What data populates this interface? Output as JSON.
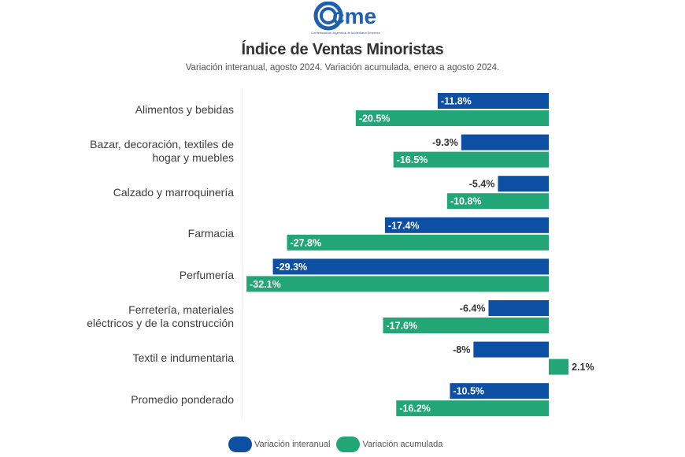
{
  "header": {
    "logo_text": "cme",
    "logo_tagline": "Confederación Argentina de la Mediana Empresa"
  },
  "colors": {
    "interanual": "#0d4fa3",
    "acumulada": "#22a676",
    "label_dark": "#333333",
    "label_light": "#ffffff",
    "logo": "#1f5fb0"
  },
  "chart_data": {
    "type": "bar",
    "orientation": "horizontal",
    "title": "Índice de Ventas Minoristas",
    "subtitle": "Variación interanual, agosto 2024. Variación acumulada, enero a agosto 2024.",
    "xlabel": "",
    "ylabel": "",
    "unit": "%",
    "xlim": [
      -32.1,
      2.1
    ],
    "grid": false,
    "legend_position": "bottom",
    "categories": [
      "Alimentos y bebidas",
      "Bazar, decoración, textiles de hogar y muebles",
      "Calzado y marroquinería",
      "Farmacia",
      "Perfumería",
      "Ferretería, materiales eléctricos y de la construcción",
      "Textil e indumentaria",
      "Promedio ponderado"
    ],
    "category_lines": [
      [
        "Alimentos y bebidas"
      ],
      [
        "Bazar, decoración, textiles de",
        "hogar y muebles"
      ],
      [
        "Calzado y marroquinería"
      ],
      [
        "Farmacia"
      ],
      [
        "Perfumería"
      ],
      [
        "Ferretería, materiales",
        "eléctricos y de la construcción"
      ],
      [
        "Textil e indumentaria"
      ],
      [
        "Promedio ponderado"
      ]
    ],
    "series": [
      {
        "name": "Variación interanual",
        "values": [
          -11.8,
          -9.3,
          -5.4,
          -17.4,
          -29.3,
          -6.4,
          -8.0,
          -10.5
        ],
        "labels": [
          "-11.8%",
          "-9.3%",
          "-5.4%",
          "-17.4%",
          "-29.3%",
          "-6.4%",
          "-8%",
          "-10.5%"
        ]
      },
      {
        "name": "Variación acumulada",
        "values": [
          -20.5,
          -16.5,
          -10.8,
          -27.8,
          -32.1,
          -17.6,
          2.1,
          -16.2
        ],
        "labels": [
          "-20.5%",
          "-16.5%",
          "-10.8%",
          "-27.8%",
          "-32.1%",
          "-17.6%",
          "2.1%",
          "-16.2%"
        ]
      }
    ]
  },
  "legend": {
    "items": [
      {
        "label": "Variación interanual"
      },
      {
        "label": "Variación acumulada"
      }
    ]
  }
}
